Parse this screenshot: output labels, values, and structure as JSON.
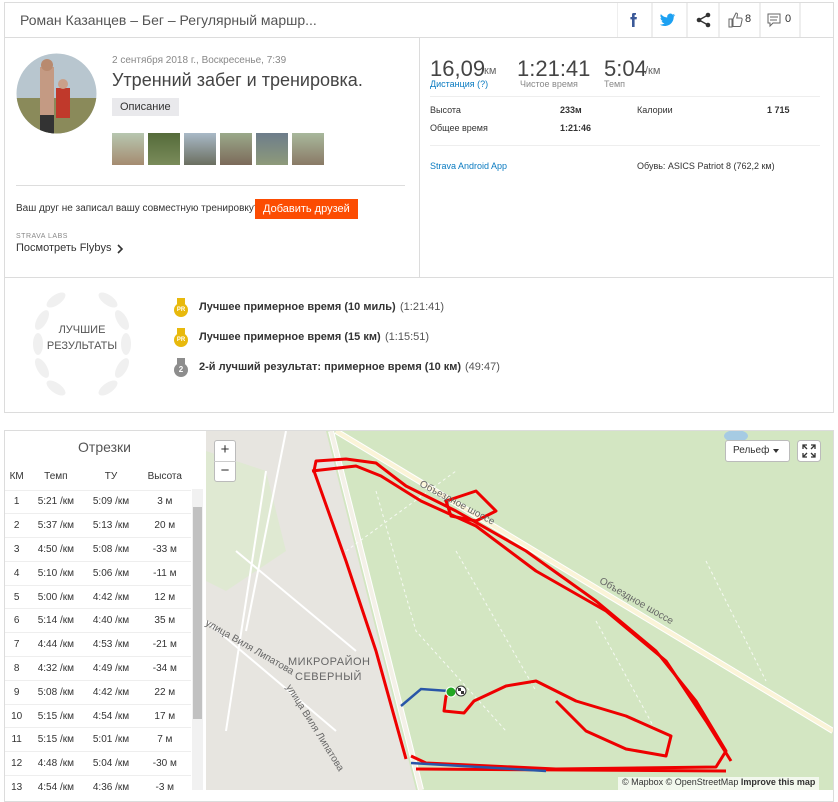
{
  "header": {
    "title": "Роман Казанцев – Бег – Регулярный маршр...",
    "kudos": "8",
    "comments": "0"
  },
  "activity": {
    "date": "2 сентября 2018 г., Воскресенье, 7:39",
    "title": "Утренний забег и тренировка.",
    "description_button": "Описание",
    "friend_prompt": "Ваш друг не записал вашу совместную тренировку?",
    "add_friends_button": "Добавить друзей",
    "labs_label": "STRAVA LABS",
    "flybys_link": "Посмотреть Flybys"
  },
  "stats": {
    "distance": {
      "value": "16,09",
      "unit": "км",
      "label": "Дистанция (?)"
    },
    "moving_time": {
      "value": "1:21:41",
      "label": "Чистое время"
    },
    "pace": {
      "value": "5:04",
      "unit": "/км",
      "label": "Темп"
    },
    "details": [
      [
        "Высота",
        "233м"
      ],
      [
        "Общее время",
        "1:21:46"
      ],
      [
        "Калории",
        "1 715"
      ]
    ],
    "device": "Strava Android App",
    "shoes": "Обувь: ASICS Patriot 8 (762,2 км)"
  },
  "achievements": {
    "badge": [
      "ЛУЧШИЕ",
      "РЕЗУЛЬТАТЫ"
    ],
    "items": [
      {
        "medal": "PR",
        "title": "Лучшее примерное время (10 миль)",
        "time": "(1:21:41)"
      },
      {
        "medal": "PR",
        "title": "Лучшее примерное время (15 км)",
        "time": "(1:15:51)"
      },
      {
        "medal": "2",
        "title": "2-й лучший результат: примерное время (10 км)",
        "time": "(49:47)"
      }
    ]
  },
  "splits": {
    "title": "Отрезки",
    "columns": [
      "КМ",
      "Темп",
      "ТУ",
      "Высота"
    ],
    "rows": [
      [
        "1",
        "5:21 /км",
        "5:09 /км",
        "3 м"
      ],
      [
        "2",
        "5:37 /км",
        "5:13 /км",
        "20 м"
      ],
      [
        "3",
        "4:50 /км",
        "5:08 /км",
        "-33 м"
      ],
      [
        "4",
        "5:10 /км",
        "5:06 /км",
        "-11 м"
      ],
      [
        "5",
        "5:00 /км",
        "4:42 /км",
        "12 м"
      ],
      [
        "6",
        "5:14 /км",
        "4:40 /км",
        "35 м"
      ],
      [
        "7",
        "4:44 /км",
        "4:53 /км",
        "-21 м"
      ],
      [
        "8",
        "4:32 /км",
        "4:49 /км",
        "-34 м"
      ],
      [
        "9",
        "5:08 /км",
        "4:42 /км",
        "22 м"
      ],
      [
        "10",
        "5:15 /км",
        "4:54 /км",
        "17 м"
      ],
      [
        "11",
        "5:15 /км",
        "5:01 /км",
        "7 м"
      ],
      [
        "12",
        "4:48 /км",
        "5:04 /км",
        "-30 м"
      ],
      [
        "13",
        "4:54 /км",
        "4:36 /км",
        "-3 м"
      ]
    ]
  },
  "map": {
    "zoom_in": "+",
    "zoom_out": "−",
    "layer_button": "Рельеф",
    "labels": [
      "Объездное шоссе",
      "Объездное шоссе",
      "улица Виля Липатова",
      "улица Виля Липатова",
      "МИКРОРАЙОН",
      "СЕВЕРНЫЙ"
    ],
    "attribution": "© Mapbox © OpenStreetMap",
    "improve": "Improve this map"
  }
}
